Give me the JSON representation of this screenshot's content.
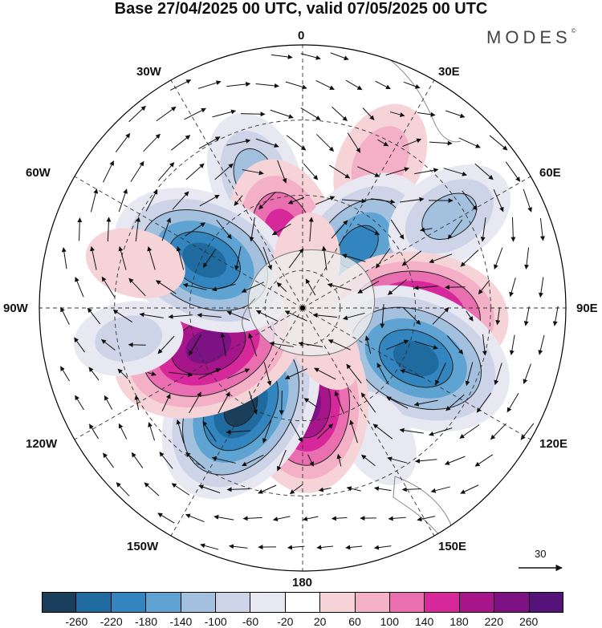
{
  "title": "Base 27/04/2025 00 UTC, valid 07/05/2025 00 UTC",
  "brand": "MODES",
  "brand_mark": "©",
  "longitude_labels": [
    "0",
    "30E",
    "60E",
    "90E",
    "120E",
    "150E",
    "180",
    "150W",
    "120W",
    "90W",
    "60W",
    "30W"
  ],
  "vector_scale": {
    "value": "30"
  },
  "colorbar": {
    "colors": [
      "#1a3f5c",
      "#1f6a9e",
      "#3385bf",
      "#5ea3d2",
      "#a3c1df",
      "#cdd4e8",
      "#e8e8f2",
      "#ffffff",
      "#f6d3d7",
      "#f3b0c7",
      "#ea6fb0",
      "#d6289a",
      "#a7158a",
      "#7c1283",
      "#54127a"
    ],
    "ticks": [
      "-260",
      "-220",
      "-180",
      "-140",
      "-100",
      "-60",
      "-20",
      "20",
      "60",
      "100",
      "140",
      "180",
      "220",
      "260"
    ]
  },
  "anomalies": [
    {
      "lon": -20,
      "colat": 37,
      "value": -110
    },
    {
      "lon": -15,
      "colat": 20,
      "value": 160
    },
    {
      "lon": 28,
      "colat": 44,
      "value": 90
    },
    {
      "lon": 42,
      "colat": 22,
      "value": -190
    },
    {
      "lon": 58,
      "colat": 46,
      "value": -110
    },
    {
      "lon": 82,
      "colat": 27,
      "value": 60
    },
    {
      "lon": 94,
      "colat": 30,
      "value": 230
    },
    {
      "lon": 114,
      "colat": 33,
      "value": -250
    },
    {
      "lon": 150,
      "colat": 40,
      "value": -40
    },
    {
      "lon": 178,
      "colat": 25,
      "value": 220
    },
    {
      "lon": -148,
      "colat": 31,
      "value": -260
    },
    {
      "lon": -112,
      "colat": 27,
      "value": 250
    },
    {
      "lon": -64,
      "colat": 29,
      "value": -240
    },
    {
      "lon": -75,
      "colat": 46,
      "value": 40
    },
    {
      "lon": -100,
      "colat": 47,
      "value": -60
    },
    {
      "lon": 5,
      "colat": 12,
      "value": 40
    },
    {
      "lon": 150,
      "colat": 12,
      "value": 20
    }
  ]
}
